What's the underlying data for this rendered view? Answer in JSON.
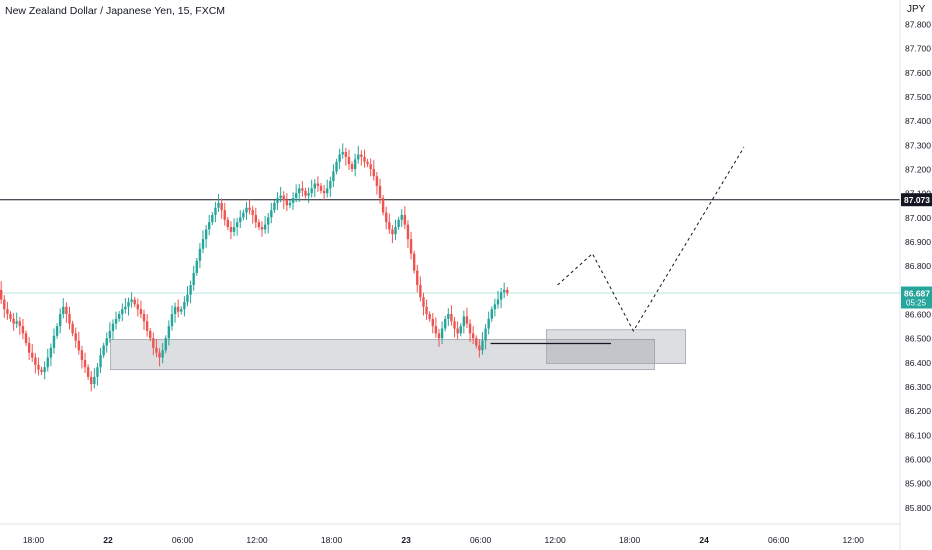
{
  "chart_data": {
    "type": "candlestick",
    "title": "New Zealand Dollar / Japanese Yen, 15, FXCM",
    "currency": "JPY",
    "ylim": [
      85.78,
      87.88
    ],
    "y_ticks": [
      "87.800",
      "87.700",
      "87.600",
      "87.500",
      "87.400",
      "87.300",
      "87.200",
      "87.100",
      "87.000",
      "86.900",
      "86.800",
      "86.700",
      "86.600",
      "86.500",
      "86.400",
      "86.300",
      "86.200",
      "86.100",
      "86.000",
      "85.900",
      "85.800"
    ],
    "x_ticks": [
      "18:00",
      "22",
      "06:00",
      "12:00",
      "18:00",
      "23",
      "06:00",
      "12:00",
      "18:00",
      "24",
      "06:00",
      "12:00"
    ],
    "x_tick_hours": [
      -6,
      0,
      6,
      12,
      18,
      24,
      30,
      36,
      42,
      48,
      54,
      60
    ],
    "colors": {
      "up": "#26a69a",
      "down": "#ef5350",
      "price_tag": "#26a69a",
      "level_tag": "#131722"
    },
    "horizontal_level": {
      "price": 87.073,
      "label": "87.073"
    },
    "last_price": {
      "price": 86.687,
      "label": "86.687",
      "countdown": "05:25"
    },
    "support_zones": [
      {
        "hours": [
          0.2,
          44.0
        ],
        "price_low": 86.37,
        "price_high": 86.495
      },
      {
        "hours": [
          35.3,
          46.5
        ],
        "price_low": 86.395,
        "price_high": 86.535
      }
    ],
    "support_line": {
      "hours": [
        30.8,
        40.5
      ],
      "price": 86.478
    },
    "projection_path": [
      {
        "hour": 36.2,
        "price": 86.72
      },
      {
        "hour": 39.0,
        "price": 86.85
      },
      {
        "hour": 42.3,
        "price": 86.53
      },
      {
        "hour": 51.2,
        "price": 87.29
      }
    ],
    "candle_series": {
      "start_hour": -14.1,
      "step_hours": 0.25,
      "open": 86.45,
      "closes": [
        86.47,
        86.55,
        86.52,
        86.6,
        86.63,
        86.66,
        86.71,
        86.74,
        86.72,
        86.69,
        86.73,
        86.7,
        86.67,
        86.64,
        86.62,
        86.65,
        86.68,
        86.7,
        86.74,
        86.76,
        86.72,
        86.7,
        86.66,
        86.62,
        86.6,
        86.58,
        86.56,
        86.57,
        86.55,
        86.52,
        86.48,
        86.44,
        86.42,
        86.39,
        86.37,
        86.36,
        86.38,
        86.42,
        86.46,
        86.51,
        86.55,
        86.6,
        86.63,
        86.6,
        86.56,
        86.52,
        86.49,
        86.45,
        86.41,
        86.38,
        86.34,
        86.31,
        86.34,
        86.38,
        86.43,
        86.47,
        86.5,
        86.53,
        86.56,
        86.58,
        86.6,
        86.62,
        86.63,
        86.65,
        86.66,
        86.64,
        86.62,
        86.6,
        86.57,
        86.53,
        86.5,
        86.46,
        86.44,
        86.42,
        86.45,
        86.5,
        86.55,
        86.6,
        86.63,
        86.61,
        86.62,
        86.65,
        86.68,
        86.72,
        86.77,
        86.82,
        86.87,
        86.91,
        86.95,
        86.98,
        87.01,
        87.04,
        87.06,
        87.03,
        86.99,
        86.96,
        86.94,
        86.96,
        86.98,
        87.0,
        87.02,
        87.04,
        87.03,
        87.01,
        86.98,
        86.96,
        86.95,
        86.97,
        87.0,
        87.03,
        87.06,
        87.08,
        87.09,
        87.07,
        87.05,
        87.06,
        87.08,
        87.1,
        87.12,
        87.11,
        87.09,
        87.1,
        87.12,
        87.14,
        87.13,
        87.11,
        87.1,
        87.12,
        87.15,
        87.19,
        87.23,
        87.26,
        87.27,
        87.25,
        87.22,
        87.2,
        87.24,
        87.26,
        87.25,
        87.23,
        87.22,
        87.2,
        87.17,
        87.13,
        87.08,
        87.02,
        86.98,
        86.95,
        86.93,
        86.96,
        86.99,
        87.01,
        86.97,
        86.91,
        86.85,
        86.78,
        86.72,
        86.67,
        86.63,
        86.6,
        86.58,
        86.55,
        86.52,
        86.5,
        86.54,
        86.58,
        86.6,
        86.57,
        86.54,
        86.52,
        86.55,
        86.59,
        86.56,
        86.52,
        86.5,
        86.47,
        86.45,
        86.49,
        86.54,
        86.58,
        86.62,
        86.64,
        86.66,
        86.69,
        86.7,
        86.687
      ]
    }
  }
}
